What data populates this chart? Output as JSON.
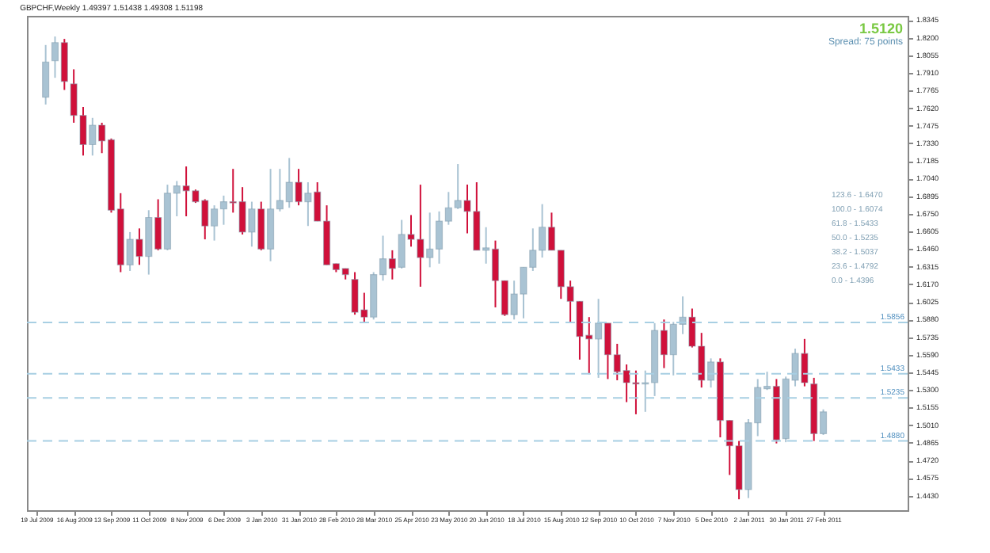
{
  "chart_data": {
    "type": "candlestick",
    "title": "GBPCHF,Weekly  1.49397 1.51438 1.49308 1.51198",
    "x": [
      "2009-07-26",
      "2009-08-02",
      "2009-08-09",
      "2009-08-16",
      "2009-08-23",
      "2009-08-30",
      "2009-09-06",
      "2009-09-13",
      "2009-09-20",
      "2009-09-27",
      "2009-10-04",
      "2009-10-11",
      "2009-10-18",
      "2009-10-25",
      "2009-11-01",
      "2009-11-08",
      "2009-11-15",
      "2009-11-22",
      "2009-11-29",
      "2009-12-06",
      "2009-12-13",
      "2009-12-20",
      "2009-12-27",
      "2010-01-03",
      "2010-01-10",
      "2010-01-17",
      "2010-01-24",
      "2010-01-31",
      "2010-02-07",
      "2010-02-14",
      "2010-02-21",
      "2010-02-28",
      "2010-03-07",
      "2010-03-14",
      "2010-03-21",
      "2010-03-28",
      "2010-04-04",
      "2010-04-11",
      "2010-04-18",
      "2010-04-25",
      "2010-05-02",
      "2010-05-09",
      "2010-05-16",
      "2010-05-23",
      "2010-05-30",
      "2010-06-06",
      "2010-06-13",
      "2010-06-20",
      "2010-06-27",
      "2010-07-04",
      "2010-07-11",
      "2010-07-18",
      "2010-07-25",
      "2010-08-01",
      "2010-08-08",
      "2010-08-15",
      "2010-08-22",
      "2010-08-29",
      "2010-09-05",
      "2010-09-12",
      "2010-09-19",
      "2010-09-26",
      "2010-10-03",
      "2010-10-10",
      "2010-10-17",
      "2010-10-24",
      "2010-10-31",
      "2010-11-07",
      "2010-11-14",
      "2010-11-21",
      "2010-11-28",
      "2010-12-05",
      "2010-12-12",
      "2010-12-19",
      "2010-12-26",
      "2011-01-02",
      "2011-01-09",
      "2011-01-16",
      "2011-01-23",
      "2011-01-30",
      "2011-02-06",
      "2011-02-13",
      "2011-02-20",
      "2011-02-27"
    ],
    "ohlc": [
      [
        1.771,
        1.814,
        1.765,
        1.8
      ],
      [
        1.801,
        1.821,
        1.787,
        1.816
      ],
      [
        1.816,
        1.819,
        1.777,
        1.784
      ],
      [
        1.782,
        1.794,
        1.75,
        1.756
      ],
      [
        1.756,
        1.763,
        1.723,
        1.732
      ],
      [
        1.732,
        1.754,
        1.723,
        1.748
      ],
      [
        1.748,
        1.75,
        1.725,
        1.735
      ],
      [
        1.736,
        1.737,
        1.676,
        1.678
      ],
      [
        1.679,
        1.692,
        1.627,
        1.633
      ],
      [
        1.633,
        1.66,
        1.628,
        1.654
      ],
      [
        1.654,
        1.663,
        1.633,
        1.64
      ],
      [
        1.64,
        1.678,
        1.625,
        1.672
      ],
      [
        1.672,
        1.687,
        1.645,
        1.646
      ],
      [
        1.646,
        1.699,
        1.645,
        1.692
      ],
      [
        1.692,
        1.702,
        1.673,
        1.698
      ],
      [
        1.698,
        1.714,
        1.673,
        1.694
      ],
      [
        1.694,
        1.695,
        1.684,
        1.685
      ],
      [
        1.686,
        1.687,
        1.654,
        1.665
      ],
      [
        1.665,
        1.682,
        1.653,
        1.679
      ],
      [
        1.679,
        1.69,
        1.666,
        1.685
      ],
      [
        1.685,
        1.712,
        1.676,
        1.684
      ],
      [
        1.685,
        1.697,
        1.658,
        1.66
      ],
      [
        1.66,
        1.685,
        1.648,
        1.679
      ],
      [
        1.679,
        1.685,
        1.645,
        1.646
      ],
      [
        1.646,
        1.712,
        1.636,
        1.679
      ],
      [
        1.679,
        1.712,
        1.677,
        1.686
      ],
      [
        1.685,
        1.721,
        1.68,
        1.701
      ],
      [
        1.701,
        1.712,
        1.682,
        1.685
      ],
      [
        1.685,
        1.701,
        1.665,
        1.692
      ],
      [
        1.693,
        1.701,
        1.669,
        1.669
      ],
      [
        1.669,
        1.682,
        1.633,
        1.633
      ],
      [
        1.634,
        1.634,
        1.627,
        1.629
      ],
      [
        1.63,
        1.63,
        1.621,
        1.625
      ],
      [
        1.621,
        1.627,
        1.592,
        1.594
      ],
      [
        1.596,
        1.61,
        1.586,
        1.59
      ],
      [
        1.59,
        1.627,
        1.588,
        1.625
      ],
      [
        1.625,
        1.657,
        1.62,
        1.638
      ],
      [
        1.638,
        1.645,
        1.621,
        1.63
      ],
      [
        1.631,
        1.67,
        1.63,
        1.658
      ],
      [
        1.658,
        1.674,
        1.648,
        1.654
      ],
      [
        1.654,
        1.699,
        1.615,
        1.639
      ],
      [
        1.639,
        1.676,
        1.631,
        1.646
      ],
      [
        1.646,
        1.677,
        1.634,
        1.669
      ],
      [
        1.669,
        1.693,
        1.666,
        1.68
      ],
      [
        1.68,
        1.716,
        1.679,
        1.686
      ],
      [
        1.686,
        1.699,
        1.659,
        1.677
      ],
      [
        1.677,
        1.701,
        1.645,
        1.645
      ],
      [
        1.645,
        1.664,
        1.634,
        1.647
      ],
      [
        1.646,
        1.653,
        1.598,
        1.62
      ],
      [
        1.62,
        1.62,
        1.591,
        1.592
      ],
      [
        1.592,
        1.62,
        1.588,
        1.609
      ],
      [
        1.609,
        1.631,
        1.589,
        1.631
      ],
      [
        1.631,
        1.663,
        1.628,
        1.645
      ],
      [
        1.645,
        1.683,
        1.639,
        1.664
      ],
      [
        1.664,
        1.676,
        1.645,
        1.645
      ],
      [
        1.645,
        1.645,
        1.605,
        1.615
      ],
      [
        1.615,
        1.62,
        1.586,
        1.603
      ],
      [
        1.603,
        1.603,
        1.555,
        1.574
      ],
      [
        1.575,
        1.59,
        1.543,
        1.572
      ],
      [
        1.572,
        1.605,
        1.54,
        1.585
      ],
      [
        1.585,
        1.585,
        1.539,
        1.559
      ],
      [
        1.559,
        1.568,
        1.538,
        1.545
      ],
      [
        1.546,
        1.551,
        1.52,
        1.536
      ],
      [
        1.536,
        1.546,
        1.51,
        1.535
      ],
      [
        1.535,
        1.546,
        1.512,
        1.536
      ],
      [
        1.536,
        1.585,
        1.525,
        1.579
      ],
      [
        1.579,
        1.588,
        1.548,
        1.559
      ],
      [
        1.559,
        1.586,
        1.542,
        1.584
      ],
      [
        1.584,
        1.607,
        1.576,
        1.59
      ],
      [
        1.59,
        1.597,
        1.565,
        1.566
      ],
      [
        1.566,
        1.577,
        1.532,
        1.538
      ],
      [
        1.538,
        1.556,
        1.532,
        1.553
      ],
      [
        1.553,
        1.556,
        1.491,
        1.505
      ],
      [
        1.505,
        1.505,
        1.46,
        1.484
      ],
      [
        1.484,
        1.488,
        1.44,
        1.448
      ],
      [
        1.448,
        1.506,
        1.441,
        1.503
      ],
      [
        1.503,
        1.539,
        1.492,
        1.532
      ],
      [
        1.531,
        1.545,
        1.53,
        1.533
      ],
      [
        1.533,
        1.539,
        1.486,
        1.489
      ],
      [
        1.49,
        1.541,
        1.487,
        1.539
      ],
      [
        1.538,
        1.564,
        1.533,
        1.56
      ],
      [
        1.56,
        1.572,
        1.533,
        1.536
      ],
      [
        1.535,
        1.54,
        1.488,
        1.494
      ],
      [
        1.494,
        1.514,
        1.493,
        1.512
      ]
    ],
    "colors": [
      "#a9c3d3",
      "#a9c3d3",
      "#d0103a",
      "#d0103a",
      "#d0103a",
      "#a9c3d3",
      "#d0103a",
      "#d0103a",
      "#d0103a",
      "#a9c3d3",
      "#d0103a",
      "#a9c3d3",
      "#d0103a",
      "#a9c3d3",
      "#a9c3d3",
      "#d0103a",
      "#d0103a",
      "#d0103a",
      "#a9c3d3",
      "#a9c3d3",
      "#d0103a",
      "#d0103a",
      "#a9c3d3",
      "#d0103a",
      "#a9c3d3",
      "#a9c3d3",
      "#a9c3d3",
      "#d0103a",
      "#a9c3d3",
      "#d0103a",
      "#d0103a",
      "#d0103a",
      "#d0103a",
      "#d0103a",
      "#d0103a",
      "#a9c3d3",
      "#a9c3d3",
      "#d0103a",
      "#a9c3d3",
      "#d0103a",
      "#d0103a",
      "#a9c3d3",
      "#a9c3d3",
      "#a9c3d3",
      "#a9c3d3",
      "#d0103a",
      "#d0103a",
      "#a9c3d3",
      "#d0103a",
      "#d0103a",
      "#a9c3d3",
      "#a9c3d3",
      "#a9c3d3",
      "#a9c3d3",
      "#d0103a",
      "#d0103a",
      "#d0103a",
      "#d0103a",
      "#d0103a",
      "#a9c3d3",
      "#d0103a",
      "#d0103a",
      "#d0103a",
      "#d0103a",
      "#a9c3d3",
      "#a9c3d3",
      "#d0103a",
      "#a9c3d3",
      "#a9c3d3",
      "#d0103a",
      "#d0103a",
      "#a9c3d3",
      "#d0103a",
      "#d0103a",
      "#d0103a",
      "#a9c3d3",
      "#a9c3d3",
      "#a9c3d3",
      "#d0103a",
      "#a9c3d3",
      "#a9c3d3",
      "#d0103a",
      "#d0103a",
      "#a9c3d3"
    ],
    "xlim": [
      "2009-07-12",
      "2011-05-01"
    ],
    "xticks": [
      {
        "value": "2009-07-19",
        "label": "19 Jul 2009"
      },
      {
        "value": "2009-08-16",
        "label": "16 Aug 2009"
      },
      {
        "value": "2009-09-13",
        "label": "13 Sep 2009"
      },
      {
        "value": "2009-10-11",
        "label": "11 Oct 2009"
      },
      {
        "value": "2009-11-08",
        "label": "8 Nov 2009"
      },
      {
        "value": "2009-12-06",
        "label": "6 Dec 2009"
      },
      {
        "value": "2010-01-03",
        "label": "3 Jan 2010"
      },
      {
        "value": "2010-01-31",
        "label": "31 Jan 2010"
      },
      {
        "value": "2010-02-28",
        "label": "28 Feb 2010"
      },
      {
        "value": "2010-03-28",
        "label": "28 Mar 2010"
      },
      {
        "value": "2010-04-25",
        "label": "25 Apr 2010"
      },
      {
        "value": "2010-05-23",
        "label": "23 May 2010"
      },
      {
        "value": "2010-06-20",
        "label": "20 Jun 2010"
      },
      {
        "value": "2010-07-18",
        "label": "18 Jul 2010"
      },
      {
        "value": "2010-08-15",
        "label": "15 Aug 2010"
      },
      {
        "value": "2010-09-12",
        "label": "12 Sep 2010"
      },
      {
        "value": "2010-10-10",
        "label": "10 Oct 2010"
      },
      {
        "value": "2010-11-07",
        "label": "7 Nov 2010"
      },
      {
        "value": "2010-12-05",
        "label": "5 Dec 2010"
      },
      {
        "value": "2011-01-02",
        "label": "2 Jan 2011"
      },
      {
        "value": "2011-01-30",
        "label": "30 Jan 2011"
      },
      {
        "value": "2011-02-27",
        "label": "27 Feb 2011"
      }
    ],
    "ylim": [
      1.431,
      1.838
    ],
    "yticks": [
      {
        "value": 1.443,
        "label": "1.4430"
      },
      {
        "value": 1.4575,
        "label": "1.4575"
      },
      {
        "value": 1.472,
        "label": "1.4720"
      },
      {
        "value": 1.4865,
        "label": "1.4865"
      },
      {
        "value": 1.501,
        "label": "1.5010"
      },
      {
        "value": 1.5155,
        "label": "1.5155"
      },
      {
        "value": 1.53,
        "label": "1.5300"
      },
      {
        "value": 1.5445,
        "label": "1.5445"
      },
      {
        "value": 1.559,
        "label": "1.5590"
      },
      {
        "value": 1.5735,
        "label": "1.5735"
      },
      {
        "value": 1.588,
        "label": "1.5880"
      },
      {
        "value": 1.6025,
        "label": "1.6025"
      },
      {
        "value": 1.617,
        "label": "1.6170"
      },
      {
        "value": 1.6315,
        "label": "1.6315"
      },
      {
        "value": 1.646,
        "label": "1.6460"
      },
      {
        "value": 1.6605,
        "label": "1.6605"
      },
      {
        "value": 1.675,
        "label": "1.6750"
      },
      {
        "value": 1.6895,
        "label": "1.6895"
      },
      {
        "value": 1.704,
        "label": "1.7040"
      },
      {
        "value": 1.7185,
        "label": "1.7185"
      },
      {
        "value": 1.733,
        "label": "1.7330"
      },
      {
        "value": 1.7475,
        "label": "1.7475"
      },
      {
        "value": 1.762,
        "label": "1.7620"
      },
      {
        "value": 1.7765,
        "label": "1.7765"
      },
      {
        "value": 1.791,
        "label": "1.7910"
      },
      {
        "value": 1.8055,
        "label": "1.8055"
      },
      {
        "value": 1.82,
        "label": "1.8200"
      },
      {
        "value": 1.8345,
        "label": "1.8345"
      }
    ],
    "ref_lines": [
      {
        "axis": "y",
        "value": 1.5856,
        "label": "1.5856",
        "color": "#a8cfe3",
        "line_style": "dashed"
      },
      {
        "axis": "y",
        "value": 1.5433,
        "label": "1.5433",
        "color": "#a8cfe3",
        "line_style": "dashed"
      },
      {
        "axis": "y",
        "value": 1.5235,
        "label": "1.5235",
        "color": "#a8cfe3",
        "line_style": "dashed"
      },
      {
        "axis": "y",
        "value": 1.488,
        "label": "1.4880",
        "color": "#a8cfe3",
        "line_style": "dashed"
      }
    ],
    "annotations": [
      "1.5120",
      "Spread: 75 points",
      "123.6 - 1.6470",
      "100.0 - 1.6074",
      "61.8 - 1.5433",
      "50.0 - 1.5235",
      "38.2 - 1.5037",
      "23.6 - 1.4792",
      "0.0 - 1.4396"
    ]
  }
}
